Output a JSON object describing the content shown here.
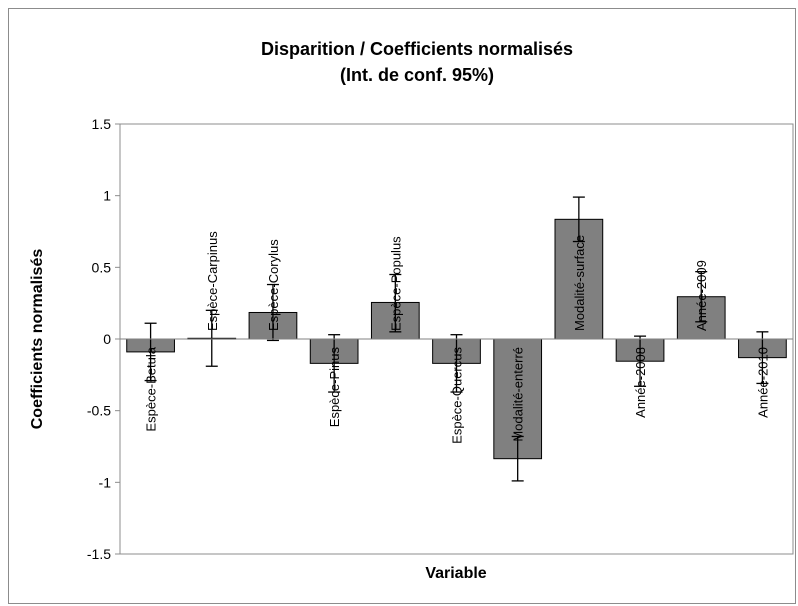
{
  "chart_data": {
    "type": "bar",
    "title": "Disparition / Coefficients normalisés",
    "subtitle": "(Int. de conf. 95%)",
    "xlabel": "Variable",
    "ylabel": "Coefficients normalisés",
    "ylim": [
      -1.5,
      1.5
    ],
    "yticks": [
      1.5,
      1,
      0.5,
      0,
      -0.5,
      -1,
      -1.5
    ],
    "ytick_labels": [
      "1.5",
      "1",
      "0.5",
      "0",
      "-0.5",
      "-1",
      "-1.5"
    ],
    "grid": false,
    "legend": "none",
    "bar_color": "#808080",
    "categories": [
      "Espèce-Betula",
      "Espèce-Carpinus",
      "Espèce-Corylus",
      "Espèce-Pinus",
      "Espèce-Populus",
      "Espèce-Quercus",
      "Modalité-enterré",
      "Modalité-surface",
      "Année-2008",
      "Année-2009",
      "Année-2010"
    ],
    "values": [
      -0.09,
      0.005,
      0.185,
      -0.17,
      0.255,
      -0.17,
      -0.835,
      0.835,
      -0.155,
      0.295,
      -0.13
    ],
    "error_low": [
      -0.29,
      -0.19,
      -0.01,
      -0.37,
      0.05,
      -0.37,
      -0.99,
      0.68,
      -0.33,
      0.12,
      -0.31
    ],
    "error_high": [
      0.11,
      0.2,
      0.38,
      0.03,
      0.45,
      0.03,
      -0.68,
      0.99,
      0.02,
      0.47,
      0.05
    ]
  }
}
